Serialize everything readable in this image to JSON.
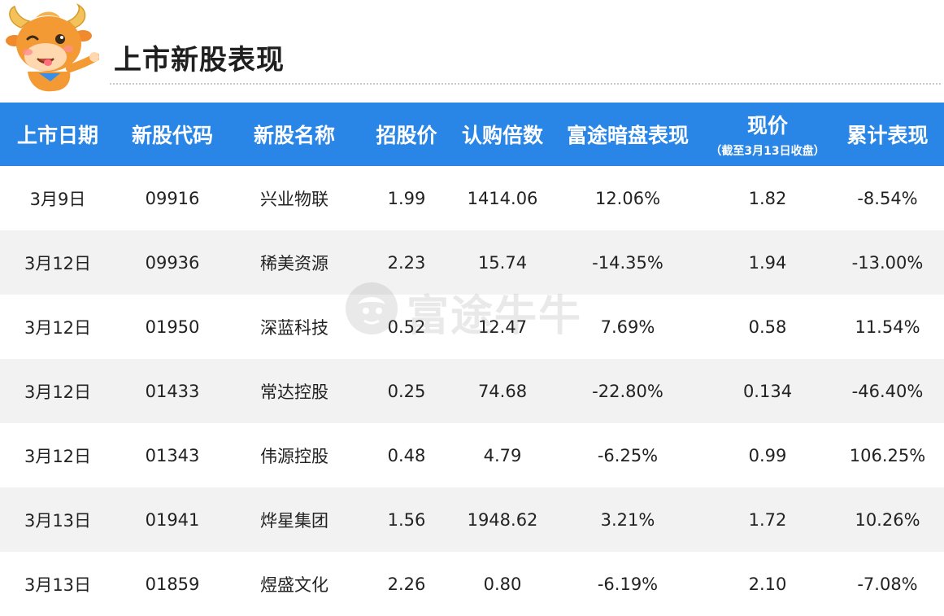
{
  "page": {
    "title": "上市新股表现"
  },
  "watermark": {
    "text": "富途牛牛"
  },
  "colors": {
    "header_bg": "#2a86e6",
    "positive": "#e6121e",
    "negative": "#18a045",
    "stripe": "#f2f2f2"
  },
  "table": {
    "columns": [
      "上市日期",
      "新股代码",
      "新股名称",
      "招股价",
      "认购倍数",
      "富途暗盘表现",
      "现价",
      "累计表现"
    ],
    "current_price_note": "（截至3月13日收盘）",
    "rows": [
      {
        "date": "3月9日",
        "code": "09916",
        "name": "兴业物联",
        "ipo_price": "1.99",
        "subscription": "1414.06",
        "dark_pool": "12.06%",
        "dark_pool_dir": "pos",
        "current": "1.82",
        "cumulative": "-8.54%",
        "cumulative_dir": "neg"
      },
      {
        "date": "3月12日",
        "code": "09936",
        "name": "稀美资源",
        "ipo_price": "2.23",
        "subscription": "15.74",
        "dark_pool": "-14.35%",
        "dark_pool_dir": "neg",
        "current": "1.94",
        "cumulative": "-13.00%",
        "cumulative_dir": "neg"
      },
      {
        "date": "3月12日",
        "code": "01950",
        "name": "深蓝科技",
        "ipo_price": "0.52",
        "subscription": "12.47",
        "dark_pool": "7.69%",
        "dark_pool_dir": "pos",
        "current": "0.58",
        "cumulative": "11.54%",
        "cumulative_dir": "pos"
      },
      {
        "date": "3月12日",
        "code": "01433",
        "name": "常达控股",
        "ipo_price": "0.25",
        "subscription": "74.68",
        "dark_pool": "-22.80%",
        "dark_pool_dir": "neg",
        "current": "0.134",
        "cumulative": "-46.40%",
        "cumulative_dir": "neg"
      },
      {
        "date": "3月12日",
        "code": "01343",
        "name": "伟源控股",
        "ipo_price": "0.48",
        "subscription": "4.79",
        "dark_pool": "-6.25%",
        "dark_pool_dir": "neg",
        "current": "0.99",
        "cumulative": "106.25%",
        "cumulative_dir": "pos"
      },
      {
        "date": "3月13日",
        "code": "01941",
        "name": "烨星集团",
        "ipo_price": "1.56",
        "subscription": "1948.62",
        "dark_pool": "3.21%",
        "dark_pool_dir": "pos",
        "current": "1.72",
        "cumulative": "10.26%",
        "cumulative_dir": "pos"
      },
      {
        "date": "3月13日",
        "code": "01859",
        "name": "煜盛文化",
        "ipo_price": "2.26",
        "subscription": "0.80",
        "dark_pool": "-6.19%",
        "dark_pool_dir": "neg",
        "current": "2.10",
        "cumulative": "-7.08%",
        "cumulative_dir": "neg"
      }
    ]
  }
}
